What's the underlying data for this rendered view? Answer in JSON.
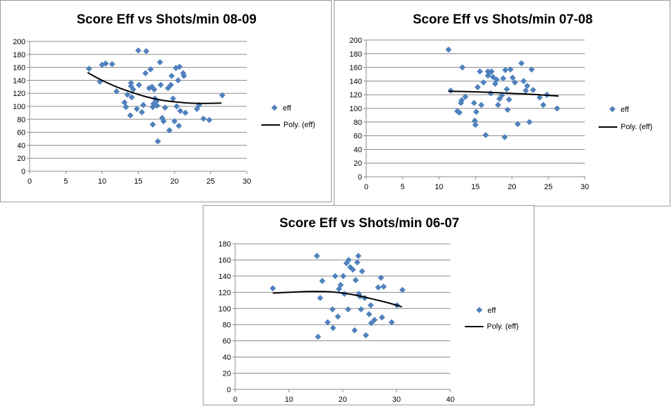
{
  "colors": {
    "marker": "#4f81bd",
    "trend": "#000000",
    "grid": "#888888",
    "axis": "#888888",
    "text": "#000000"
  },
  "chart_data": [
    {
      "type": "scatter",
      "title": "Score Eff vs Shots/min 08-09",
      "legend": {
        "marker": "eff",
        "trend": "Poly. (eff)",
        "placement": "right"
      },
      "xlim": [
        0,
        30
      ],
      "ylim": [
        0,
        200
      ],
      "xticks": [
        "0",
        "5",
        "10",
        "15",
        "20",
        "25",
        "30"
      ],
      "yticks": [
        "0",
        "20",
        "40",
        "60",
        "80",
        "100",
        "120",
        "140",
        "160",
        "180",
        "200"
      ],
      "grid": true,
      "trendline": {
        "type": "poly",
        "x": [
          8,
          10,
          12,
          14,
          16,
          18,
          20,
          22,
          24,
          26.5
        ],
        "y": [
          152,
          140,
          130,
          122,
          115,
          110,
          107,
          105,
          104.5,
          105
        ]
      },
      "x": [
        8.2,
        9.7,
        10,
        10.5,
        11.4,
        12,
        13.1,
        13.3,
        13.5,
        13.9,
        14,
        14,
        14.1,
        14.3,
        14.8,
        15,
        15.1,
        15.5,
        15.7,
        16,
        16.1,
        16.5,
        16.7,
        16.9,
        17,
        17,
        17.1,
        17.2,
        17.3,
        17.5,
        17.6,
        17.7,
        18,
        18.1,
        18.3,
        18.5,
        18.7,
        19.1,
        19.3,
        19.5,
        19.6,
        19.8,
        20,
        20.2,
        20.3,
        20.5,
        20.6,
        20.7,
        20.8,
        21.2,
        21.3,
        21.5,
        23.1,
        23.4,
        24,
        24.8,
        26.6
      ],
      "y": [
        158,
        138,
        164,
        166,
        165,
        123,
        106,
        99,
        118,
        86,
        131,
        136,
        114,
        126,
        96,
        186,
        133,
        91,
        102,
        151,
        185,
        128,
        157,
        130,
        72,
        99,
        104,
        126,
        112,
        108,
        101,
        46,
        168,
        133,
        82,
        77,
        98,
        128,
        63,
        133,
        147,
        112,
        77,
        159,
        100,
        140,
        70,
        161,
        93,
        151,
        147,
        90,
        96,
        102,
        81,
        79,
        117
      ]
    },
    {
      "type": "scatter",
      "title": "Score Eff vs Shots/min 07-08",
      "legend": {
        "marker": "eff",
        "trend": "Poly. (eff)",
        "placement": "right"
      },
      "xlim": [
        0,
        30
      ],
      "ylim": [
        0,
        200
      ],
      "xticks": [
        "0",
        "5",
        "10",
        "15",
        "20",
        "25",
        "30"
      ],
      "yticks": [
        "0",
        "20",
        "40",
        "60",
        "80",
        "100",
        "120",
        "140",
        "160",
        "180",
        "200"
      ],
      "grid": true,
      "trendline": {
        "type": "poly",
        "x": [
          11.3,
          14,
          17,
          20,
          23,
          26.4
        ],
        "y": [
          125,
          124.5,
          123.5,
          122,
          120.5,
          118
        ]
      },
      "x": [
        11.3,
        11.6,
        12.5,
        12.8,
        13,
        13.1,
        13.2,
        13.6,
        14.8,
        14.9,
        15,
        15.1,
        15.3,
        15.6,
        15.8,
        16.1,
        16.4,
        16.7,
        16.7,
        16.9,
        17.1,
        17.2,
        17.4,
        17.7,
        17.9,
        18.1,
        18.3,
        18.6,
        18.8,
        19,
        19.1,
        19.3,
        19.4,
        19.6,
        19.8,
        20.1,
        20.4,
        20.8,
        21.3,
        21.6,
        21.9,
        22.1,
        22.4,
        22.7,
        22.9,
        23.8,
        24.3,
        24.8,
        26.2
      ],
      "y": [
        186,
        126,
        96,
        94,
        108,
        112,
        160,
        117,
        108,
        82,
        76,
        95,
        131,
        154,
        105,
        138,
        61,
        154,
        148,
        152,
        122,
        154,
        146,
        136,
        142,
        105,
        114,
        119,
        144,
        58,
        156,
        128,
        98,
        113,
        157,
        145,
        138,
        77,
        166,
        140,
        126,
        133,
        80,
        157,
        127,
        116,
        105,
        120,
        100
      ]
    },
    {
      "type": "scatter",
      "title": "Score Eff vs Shots/min 06-07",
      "legend": {
        "marker": "eff",
        "trend": "Poly. (eff)",
        "placement": "right"
      },
      "xlim": [
        0,
        40
      ],
      "ylim": [
        0,
        180
      ],
      "xticks": [
        "0",
        "10",
        "20",
        "30",
        "40"
      ],
      "yticks": [
        "0",
        "20",
        "40",
        "60",
        "80",
        "100",
        "120",
        "140",
        "160",
        "180"
      ],
      "grid": true,
      "trendline": {
        "type": "poly",
        "x": [
          7,
          10,
          14,
          18,
          22,
          26,
          29,
          31
        ],
        "y": [
          119,
          120,
          121,
          120.5,
          117,
          111,
          106,
          102
        ]
      },
      "x": [
        7,
        15.2,
        15.4,
        15.8,
        16.2,
        17.2,
        18.1,
        18.2,
        18.6,
        19.1,
        19.3,
        19.6,
        20.1,
        20.3,
        20.7,
        21,
        21.1,
        21.4,
        21.9,
        22.2,
        22.4,
        22.7,
        22.9,
        23,
        23.2,
        23.4,
        23.6,
        24.1,
        24.3,
        24.9,
        25.2,
        25.3,
        25.9,
        26.6,
        27.1,
        27.3,
        27.6,
        29.1,
        30.1,
        31.1
      ],
      "y": [
        125,
        165,
        65,
        113,
        134,
        83,
        99,
        76,
        140,
        90,
        124,
        129,
        140,
        118,
        156,
        99,
        160,
        151,
        148,
        73,
        135,
        157,
        165,
        118,
        115,
        99,
        146,
        113,
        67,
        93,
        104,
        82,
        86,
        126,
        138,
        89,
        127,
        83,
        104,
        123
      ]
    }
  ]
}
